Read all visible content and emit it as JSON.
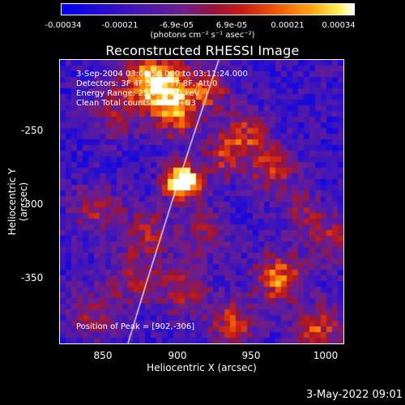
{
  "colorbar": {
    "ticks": [
      "-0.00034",
      "-0.00021",
      "-6.9e-05",
      "6.9e-05",
      "0.00021",
      "0.00034"
    ],
    "units": "(photons cm⁻² s⁻¹ asec⁻²)"
  },
  "title": "Reconstructed RHESSI Image",
  "info": {
    "time_range": "3-Sep-2004 03:06:56.000 to 03:11:24.000",
    "detectors": "Detectors: 3F 4F 5F 6F 7F 8F, Att 0",
    "energy": "Energy Range: 25.0 - 50.0 keV",
    "method": "Clean    Total counts: 3.67E+03"
  },
  "peak_text": "Position of Peak = [902,-306]",
  "axes": {
    "xlabel": "Heliocentric X (arcsec)",
    "ylabel": "Heliocentric Y (arcsec)",
    "xticks": [
      "850",
      "900",
      "950",
      "1000"
    ],
    "yticks": [
      "-250",
      "-300",
      "-350"
    ]
  },
  "date_stamp": "3-May-2022 09:01",
  "colors": {
    "background": "#000000",
    "foreground": "#ffffff",
    "limb_line": "#ffffff"
  }
}
